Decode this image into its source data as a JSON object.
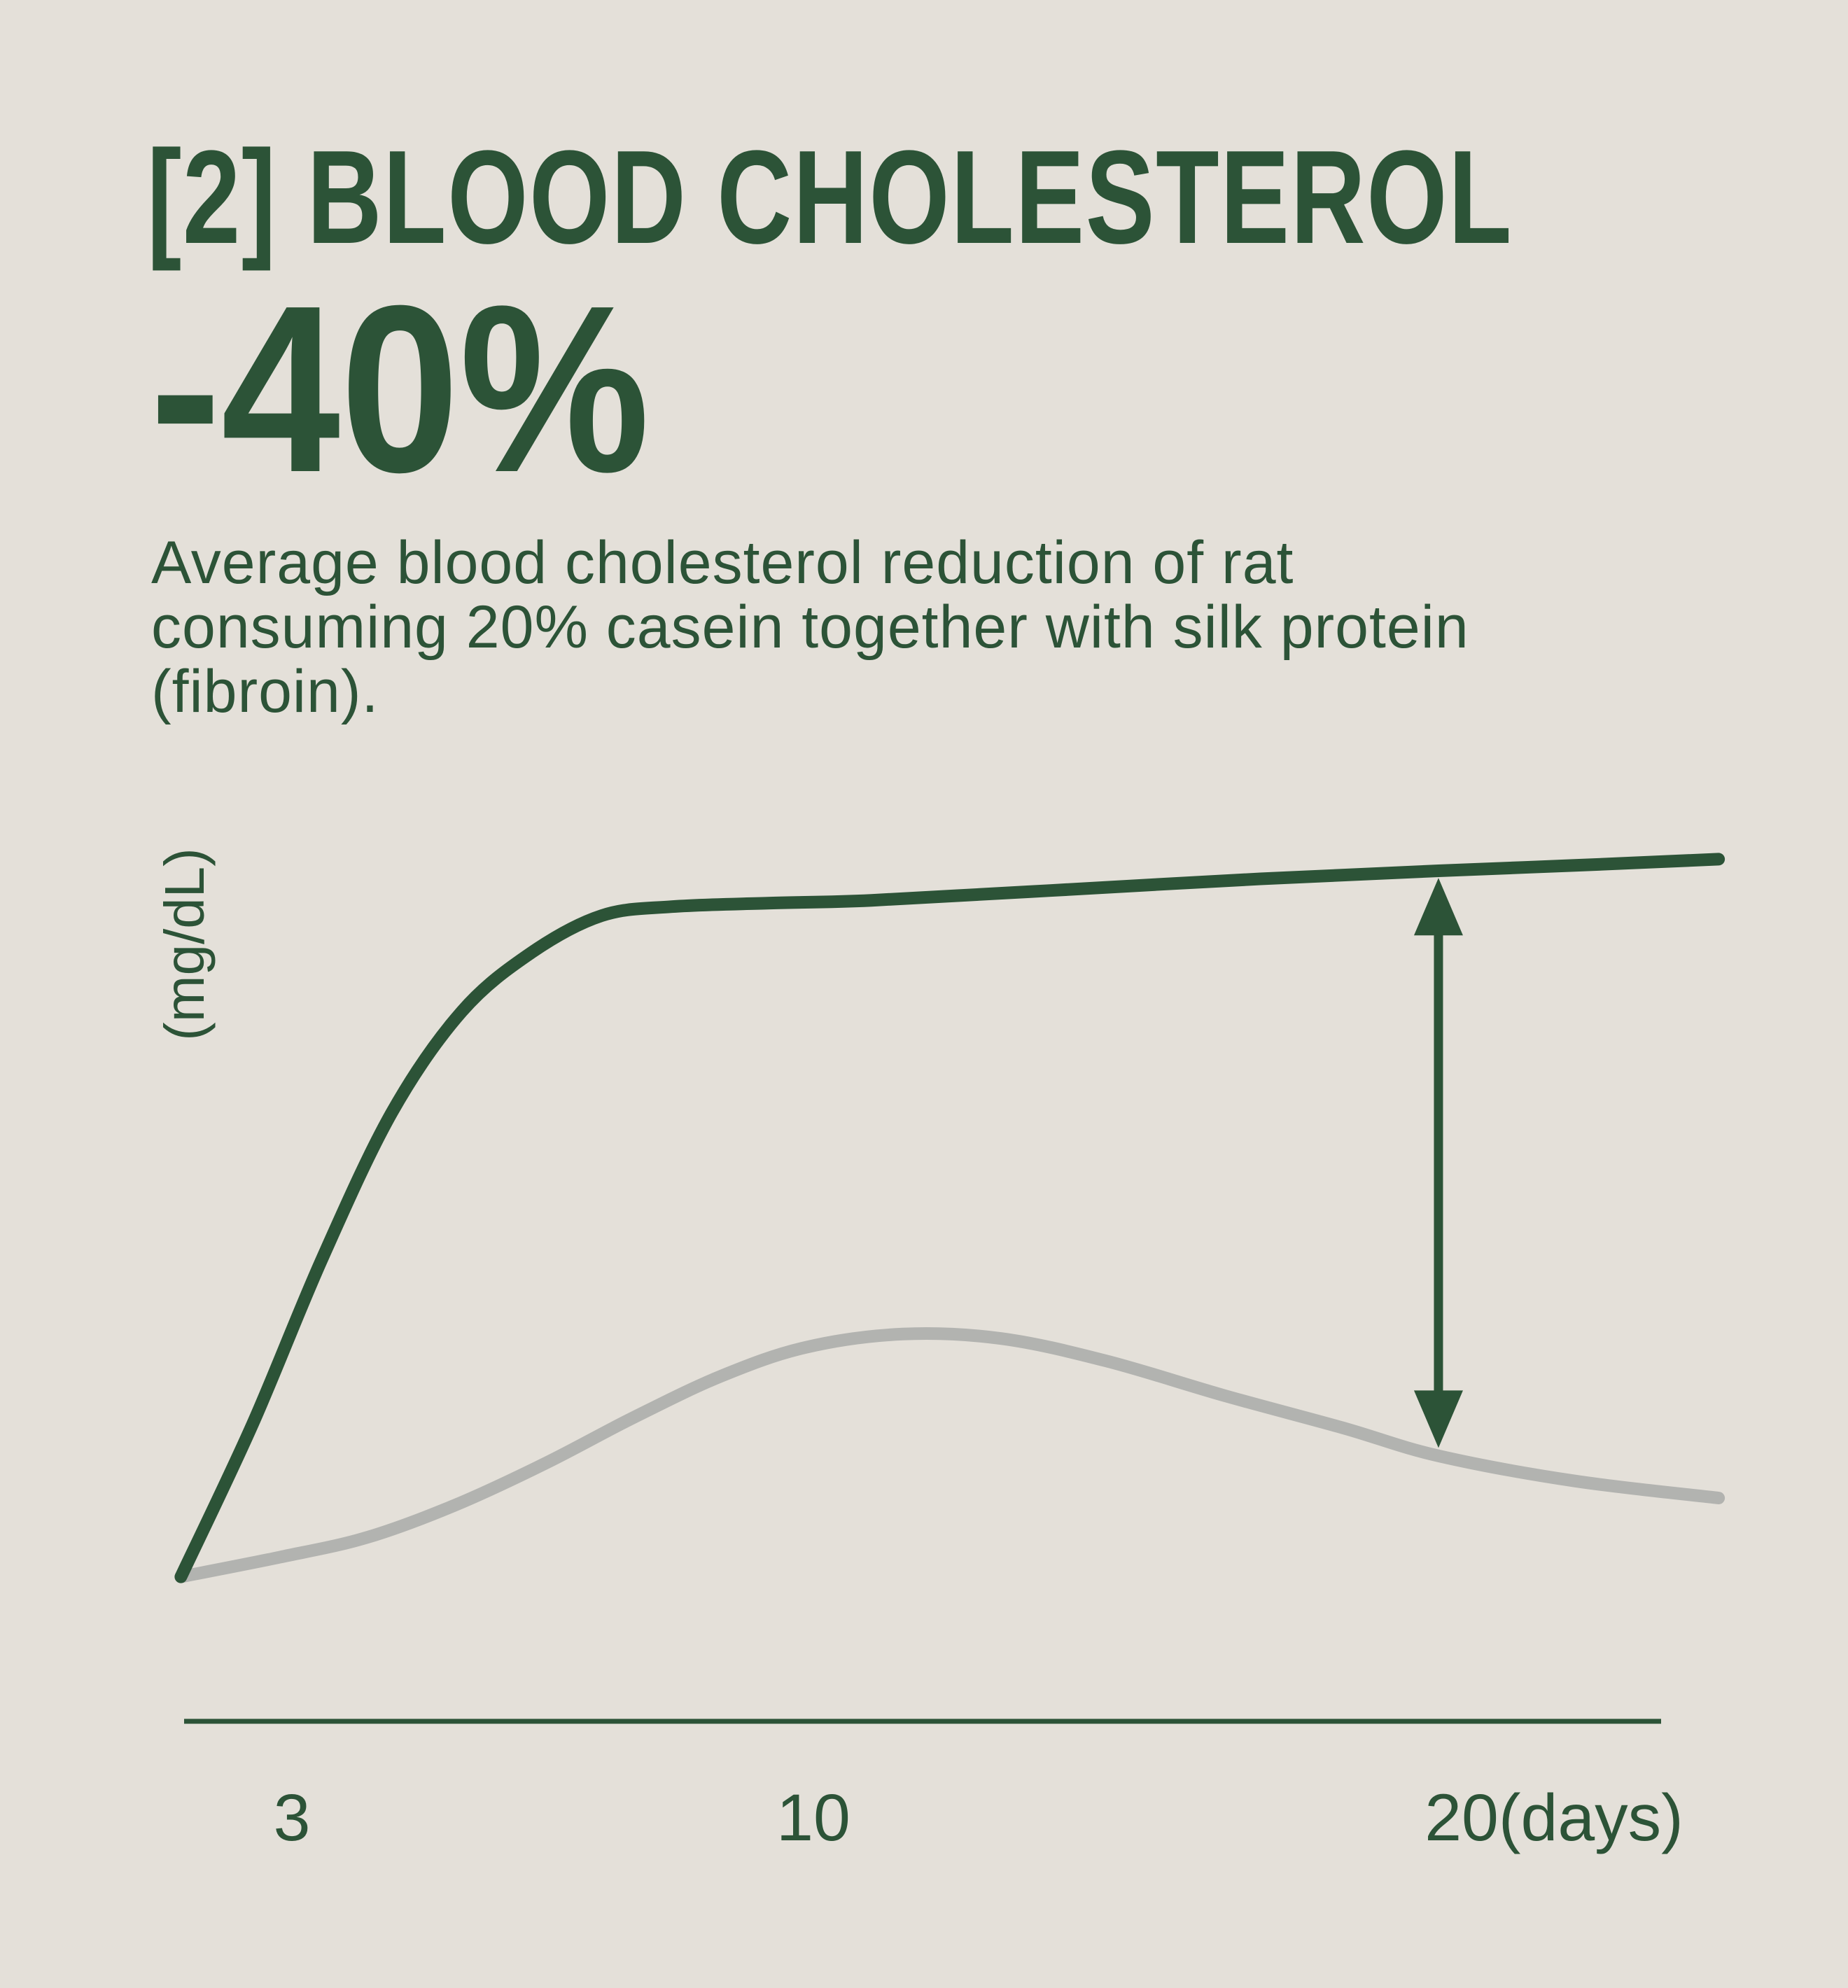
{
  "page": {
    "background": "#e4e0d9",
    "accent_green": "#2c5337",
    "line_gray": "#b2b3b0"
  },
  "header": {
    "title": "[2] BLOOD CHOLESTEROL",
    "stat": "-40%"
  },
  "subtitle": {
    "lines": [
      "Average blood cholesterol reduction of rat",
      "consuming 20% casein together with silk protein",
      "(fibroin)."
    ]
  },
  "chart_data": {
    "type": "line",
    "title": "",
    "ylabel": "(mg/dL)",
    "xlabel": "(days)",
    "x_ticks": [
      {
        "label": "3",
        "day": 3
      },
      {
        "label": "10",
        "day": 10
      },
      {
        "label": "20(days)",
        "day": 20
      }
    ],
    "layout": {
      "x_range": [
        1.5,
        22.2
      ],
      "y_range": [
        0,
        110
      ],
      "grid": false,
      "legend": "none",
      "y_axis_numeric_ticks": false
    },
    "series": [
      {
        "name": "green-line-casein-only",
        "color": "#2c5337",
        "points": [
          [
            1.51,
            16.2
          ],
          [
            2.47,
            33.2
          ],
          [
            3.4,
            51.6
          ],
          [
            4.34,
            68.0
          ],
          [
            5.28,
            79.3
          ],
          [
            6.22,
            85.9
          ],
          [
            7.16,
            90.0
          ],
          [
            8.1,
            91.0
          ],
          [
            9.42,
            91.4
          ],
          [
            10.78,
            91.7
          ],
          [
            13.18,
            92.8
          ],
          [
            16.0,
            94.1
          ],
          [
            18.39,
            95.0
          ],
          [
            20.22,
            95.6
          ],
          [
            22.15,
            96.3
          ]
        ]
      },
      {
        "name": "gray-line-with-silk-protein",
        "color": "#b2b3b0",
        "points": [
          [
            1.51,
            16.2
          ],
          [
            2.84,
            18.4
          ],
          [
            4.01,
            20.6
          ],
          [
            5.19,
            24.2
          ],
          [
            6.41,
            28.9
          ],
          [
            7.59,
            34.0
          ],
          [
            8.76,
            38.6
          ],
          [
            9.89,
            41.8
          ],
          [
            11.2,
            43.3
          ],
          [
            12.52,
            42.8
          ],
          [
            13.93,
            40.3
          ],
          [
            15.53,
            36.4
          ],
          [
            17.12,
            32.8
          ],
          [
            18.39,
            29.7
          ],
          [
            20.22,
            26.9
          ],
          [
            22.15,
            25.0
          ]
        ]
      }
    ],
    "annotation_arrow": {
      "day": 18.39,
      "from_val": 94.2,
      "to_val": 30.6,
      "color": "#2c5337"
    }
  }
}
